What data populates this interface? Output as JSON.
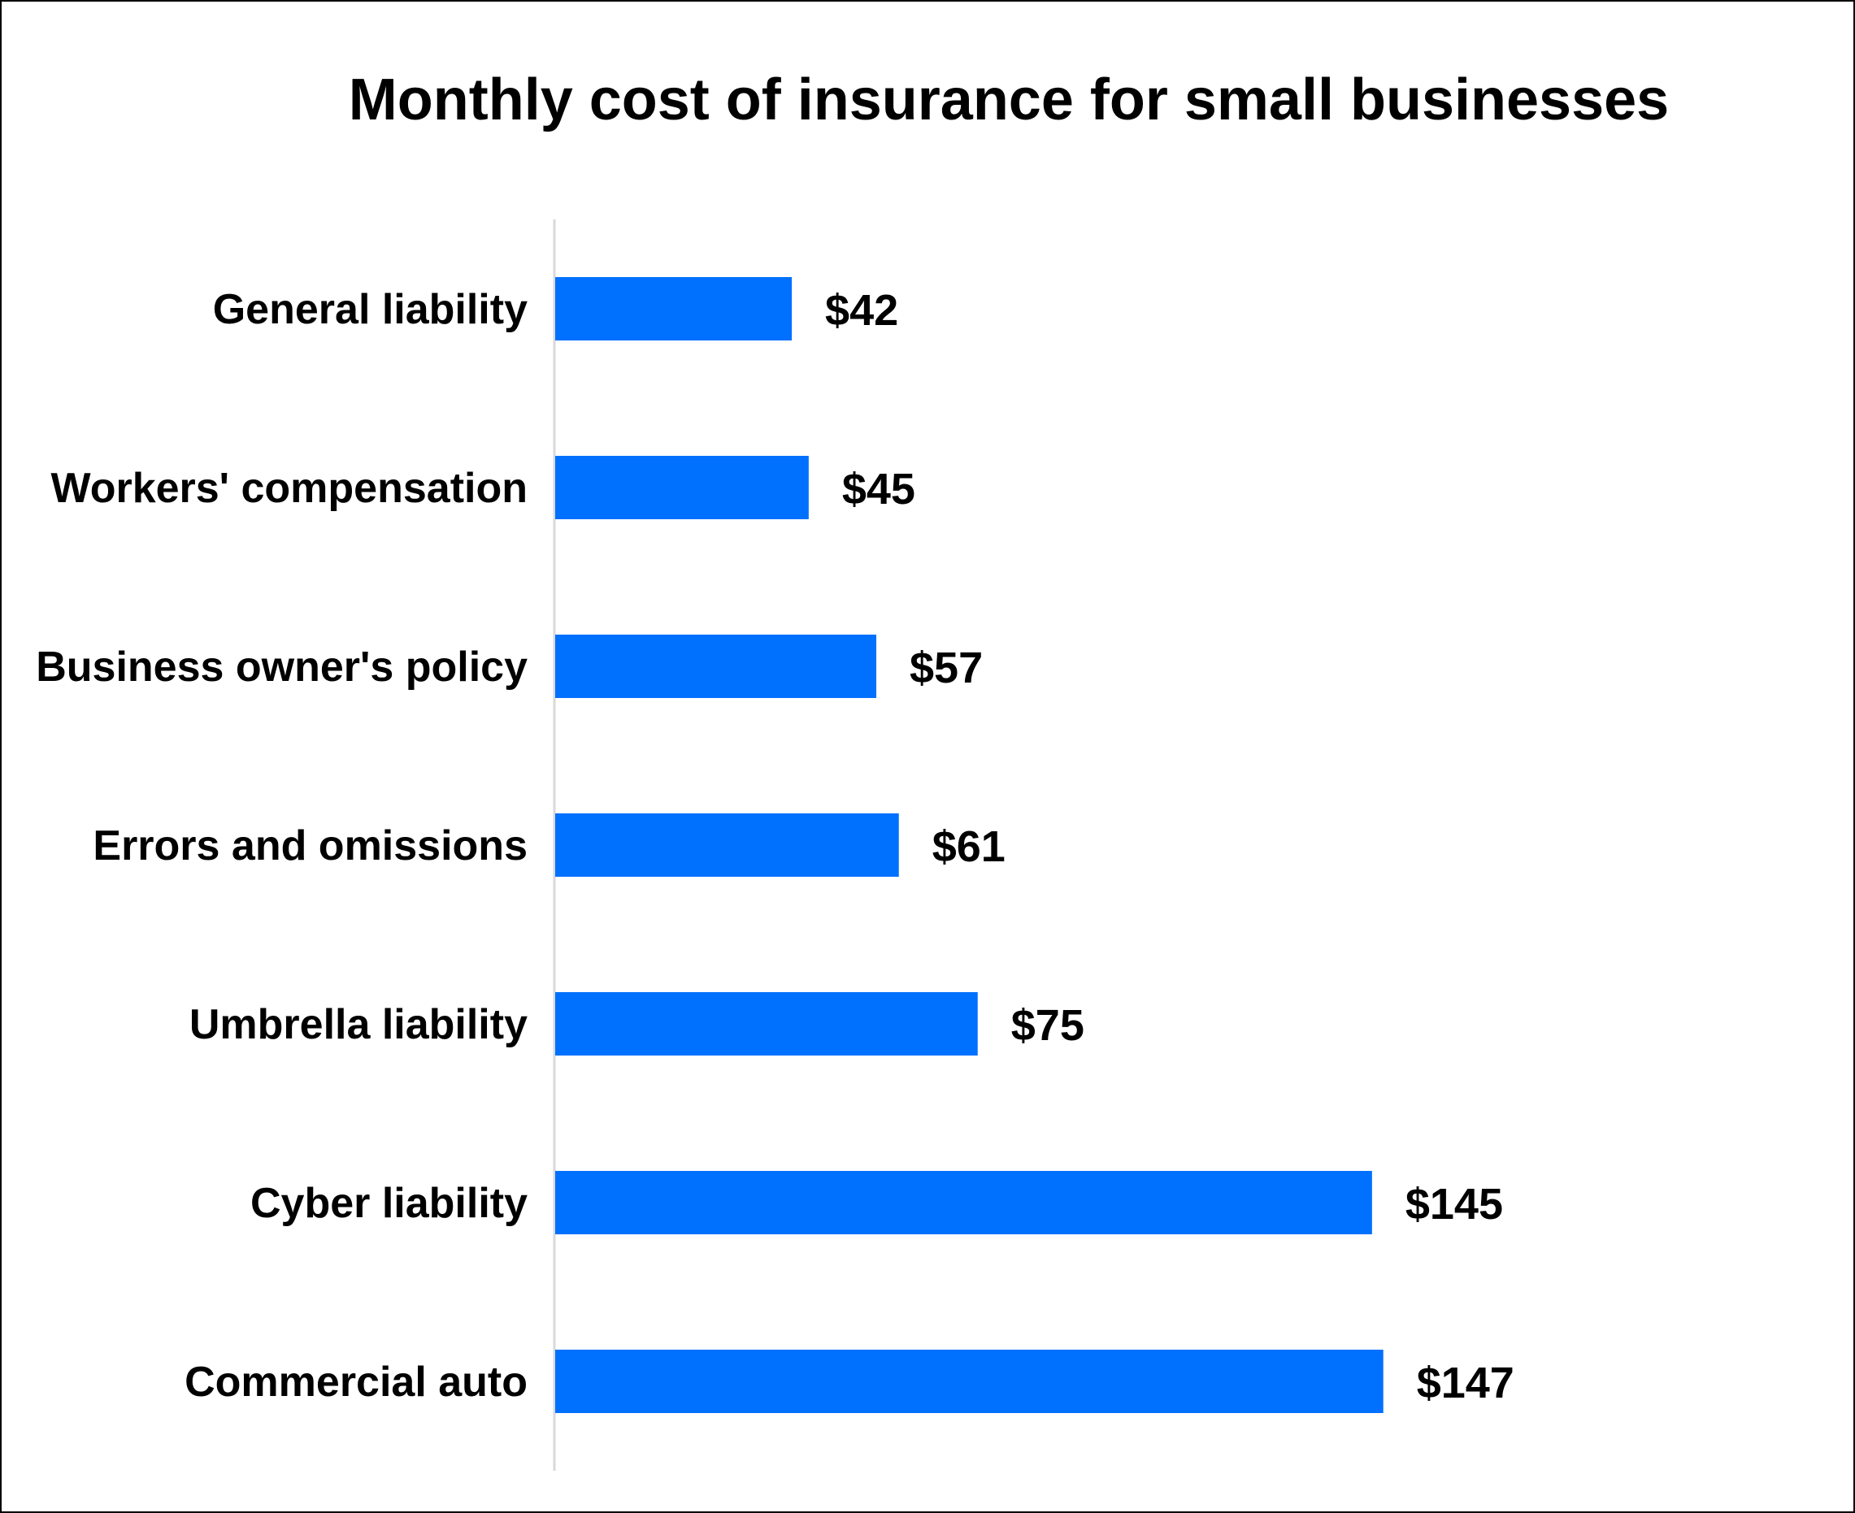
{
  "chart_data": {
    "type": "bar",
    "orientation": "horizontal",
    "title": "Monthly cost of insurance for small businesses",
    "categories": [
      "General liability",
      "Workers' compensation",
      "Business owner's policy",
      "Errors and omissions",
      "Umbrella liability",
      "Cyber liability",
      "Commercial auto"
    ],
    "values": [
      42,
      45,
      57,
      61,
      75,
      145,
      147
    ],
    "data_labels": [
      "$42",
      "$45",
      "$57",
      "$61",
      "$75",
      "$145",
      "$147"
    ],
    "xlabel": "",
    "ylabel": "",
    "xlim": [
      0,
      150
    ],
    "grid": false,
    "legend": "none",
    "bar_color": "#0070FF",
    "axis_color": "#D9D9D9"
  }
}
